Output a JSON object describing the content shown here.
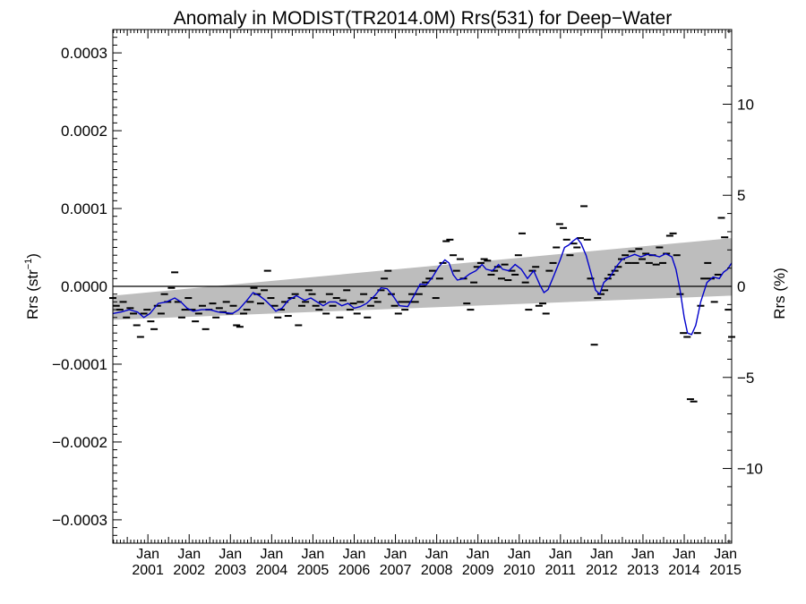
{
  "chart_data": {
    "type": "scatter",
    "title": "Anomaly in MODIST(TR2014.0M) Rrs(531) for Deep−Water",
    "ylabel_left_main": "Rrs (str",
    "ylabel_left_sup": "−1",
    "ylabel_left_close": ")",
    "ylabel_right": "Rrs (%)",
    "xlim": [
      2000.15,
      2015.15
    ],
    "ylim": [
      -0.00033,
      0.00033
    ],
    "ylim_right_percent": [
      -14.1,
      14.1
    ],
    "left_ticks": [
      {
        "value": 0.0003,
        "label": "0.0003"
      },
      {
        "value": 0.0002,
        "label": "0.0002"
      },
      {
        "value": 0.0001,
        "label": "0.0001"
      },
      {
        "value": 0.0,
        "label": "0.0000"
      },
      {
        "value": -0.0001,
        "label": "−0.0001"
      },
      {
        "value": -0.0002,
        "label": "−0.0002"
      },
      {
        "value": -0.0003,
        "label": "−0.0003"
      }
    ],
    "right_ticks": [
      {
        "value": 10,
        "label": "10"
      },
      {
        "value": 5,
        "label": "5"
      },
      {
        "value": 0,
        "label": "0"
      },
      {
        "value": -5,
        "label": "−5"
      },
      {
        "value": -10,
        "label": "−10"
      }
    ],
    "x_ticks": [
      {
        "value": 2001,
        "month": "Jan",
        "year": "2001"
      },
      {
        "value": 2002,
        "month": "Jan",
        "year": "2002"
      },
      {
        "value": 2003,
        "month": "Jan",
        "year": "2003"
      },
      {
        "value": 2004,
        "month": "Jan",
        "year": "2004"
      },
      {
        "value": 2005,
        "month": "Jan",
        "year": "2005"
      },
      {
        "value": 2006,
        "month": "Jan",
        "year": "2006"
      },
      {
        "value": 2007,
        "month": "Jan",
        "year": "2007"
      },
      {
        "value": 2008,
        "month": "Jan",
        "year": "2008"
      },
      {
        "value": 2009,
        "month": "Jan",
        "year": "2009"
      },
      {
        "value": 2010,
        "month": "Jan",
        "year": "2010"
      },
      {
        "value": 2011,
        "month": "Jan",
        "year": "2011"
      },
      {
        "value": 2012,
        "month": "Jan",
        "year": "2012"
      },
      {
        "value": 2013,
        "month": "Jan",
        "year": "2013"
      },
      {
        "value": 2014,
        "month": "Jan",
        "year": "2014"
      },
      {
        "value": 2015,
        "month": "Jan",
        "year": "2015"
      }
    ],
    "trend_band": {
      "start": {
        "x": 2000.15,
        "low": -4.3e-05,
        "high": -1.2e-05
      },
      "end": {
        "x": 2015.15,
        "low": -1.2e-05,
        "high": 6.2e-05
      }
    },
    "zero_line": 0.0,
    "colors": {
      "points": "#000000",
      "smooth": "#0000cc",
      "band": "#bdbdbd",
      "axes": "#000000"
    },
    "monthly_anomalies": [
      [
        2000.15,
        -1.5e-05
      ],
      [
        2000.23,
        -2.5e-05
      ],
      [
        2000.32,
        -3e-05
      ],
      [
        2000.4,
        -2e-05
      ],
      [
        2000.48,
        -4e-05
      ],
      [
        2000.57,
        -2.8e-05
      ],
      [
        2000.65,
        -3.5e-05
      ],
      [
        2000.73,
        -5e-05
      ],
      [
        2000.82,
        -6.5e-05
      ],
      [
        2000.9,
        -3.5e-05
      ],
      [
        2000.98,
        -3e-05
      ],
      [
        2001.07,
        -4.5e-05
      ],
      [
        2001.15,
        -5.5e-05
      ],
      [
        2001.23,
        -2.5e-05
      ],
      [
        2001.32,
        -3.5e-05
      ],
      [
        2001.4,
        -1e-05
      ],
      [
        2001.48,
        -2e-05
      ],
      [
        2001.57,
        -2e-06
      ],
      [
        2001.65,
        1.8e-05
      ],
      [
        2001.73,
        -2e-05
      ],
      [
        2001.82,
        -4e-05
      ],
      [
        2001.9,
        -3e-05
      ],
      [
        2001.98,
        -1.5e-05
      ],
      [
        2002.07,
        -3e-05
      ],
      [
        2002.15,
        -4.5e-05
      ],
      [
        2002.23,
        -3.5e-05
      ],
      [
        2002.32,
        -2.5e-05
      ],
      [
        2002.4,
        -5.5e-05
      ],
      [
        2002.48,
        -3e-05
      ],
      [
        2002.57,
        -2.2e-05
      ],
      [
        2002.65,
        -4e-05
      ],
      [
        2002.73,
        -2.8e-05
      ],
      [
        2002.82,
        -3.3e-05
      ],
      [
        2002.9,
        -2e-05
      ],
      [
        2002.98,
        -3.5e-05
      ],
      [
        2003.07,
        -2.5e-05
      ],
      [
        2003.15,
        -5e-05
      ],
      [
        2003.23,
        -5.2e-05
      ],
      [
        2003.32,
        -3.5e-05
      ],
      [
        2003.4,
        -3e-05
      ],
      [
        2003.48,
        -2e-05
      ],
      [
        2003.57,
        -2e-06
      ],
      [
        2003.65,
        -1e-05
      ],
      [
        2003.73,
        -2.2e-05
      ],
      [
        2003.82,
        -5e-06
      ],
      [
        2003.9,
        2e-05
      ],
      [
        2003.98,
        -1.5e-05
      ],
      [
        2004.07,
        -2.5e-05
      ],
      [
        2004.15,
        -4e-05
      ],
      [
        2004.23,
        -3e-05
      ],
      [
        2004.32,
        -2e-05
      ],
      [
        2004.4,
        -3.8e-05
      ],
      [
        2004.48,
        -1.5e-05
      ],
      [
        2004.57,
        -1e-05
      ],
      [
        2004.65,
        -5e-05
      ],
      [
        2004.73,
        -2.5e-05
      ],
      [
        2004.82,
        -2e-05
      ],
      [
        2004.9,
        -5e-06
      ],
      [
        2004.98,
        -1e-05
      ],
      [
        2005.07,
        -2.5e-05
      ],
      [
        2005.15,
        -3e-05
      ],
      [
        2005.23,
        -2e-05
      ],
      [
        2005.32,
        -3.5e-05
      ],
      [
        2005.4,
        -1e-05
      ],
      [
        2005.48,
        -2.5e-05
      ],
      [
        2005.57,
        -1.5e-05
      ],
      [
        2005.65,
        -4e-05
      ],
      [
        2005.73,
        -1.8e-05
      ],
      [
        2005.82,
        -5e-06
      ],
      [
        2005.9,
        -3e-05
      ],
      [
        2005.98,
        -2.2e-05
      ],
      [
        2006.07,
        -3.5e-05
      ],
      [
        2006.15,
        -2e-05
      ],
      [
        2006.23,
        -1e-05
      ],
      [
        2006.32,
        -4e-05
      ],
      [
        2006.4,
        -2.5e-05
      ],
      [
        2006.48,
        -1.5e-05
      ],
      [
        2006.57,
        -2e-05
      ],
      [
        2006.65,
        -5e-06
      ],
      [
        2006.73,
        1e-05
      ],
      [
        2006.82,
        2e-05
      ],
      [
        2006.9,
        -1e-05
      ],
      [
        2006.98,
        -2.5e-05
      ],
      [
        2007.07,
        -3.5e-05
      ],
      [
        2007.15,
        -2e-05
      ],
      [
        2007.23,
        -3e-05
      ],
      [
        2007.32,
        -2e-05
      ],
      [
        2007.4,
        -1e-05
      ],
      [
        2007.48,
        -2e-05
      ],
      [
        2007.57,
        -1e-05
      ],
      [
        2007.65,
        0.0
      ],
      [
        2007.73,
        5e-06
      ],
      [
        2007.82,
        1e-05
      ],
      [
        2007.9,
        2e-05
      ],
      [
        2007.98,
        -1.5e-05
      ],
      [
        2008.07,
        1e-05
      ],
      [
        2008.15,
        3e-05
      ],
      [
        2008.23,
        5.8e-05
      ],
      [
        2008.32,
        6e-05
      ],
      [
        2008.4,
        4e-05
      ],
      [
        2008.48,
        2e-05
      ],
      [
        2008.57,
        3.5e-05
      ],
      [
        2008.65,
        1e-05
      ],
      [
        2008.73,
        -2.2e-05
      ],
      [
        2008.82,
        -3e-05
      ],
      [
        2008.9,
        5e-06
      ],
      [
        2008.98,
        2.5e-05
      ],
      [
        2009.07,
        3e-05
      ],
      [
        2009.15,
        3.5e-05
      ],
      [
        2009.23,
        3.3e-05
      ],
      [
        2009.32,
        1.5e-05
      ],
      [
        2009.4,
        2e-05
      ],
      [
        2009.48,
        2.5e-05
      ],
      [
        2009.57,
        1e-05
      ],
      [
        2009.65,
        2.8e-05
      ],
      [
        2009.73,
        8e-06
      ],
      [
        2009.82,
        2e-05
      ],
      [
        2009.9,
        1.5e-05
      ],
      [
        2009.98,
        4e-05
      ],
      [
        2010.07,
        6.8e-05
      ],
      [
        2010.15,
        5e-06
      ],
      [
        2010.23,
        -3e-05
      ],
      [
        2010.32,
        2e-05
      ],
      [
        2010.4,
        2.5e-05
      ],
      [
        2010.48,
        -2.5e-05
      ],
      [
        2010.57,
        -2.2e-05
      ],
      [
        2010.65,
        -3.5e-05
      ],
      [
        2010.73,
        2e-05
      ],
      [
        2010.82,
        3e-05
      ],
      [
        2010.9,
        5e-05
      ],
      [
        2010.98,
        8e-05
      ],
      [
        2011.07,
        7.5e-05
      ],
      [
        2011.15,
        6e-05
      ],
      [
        2011.23,
        4e-05
      ],
      [
        2011.32,
        5.5e-05
      ],
      [
        2011.4,
        5e-05
      ],
      [
        2011.48,
        6.2e-05
      ],
      [
        2011.57,
        0.000103
      ],
      [
        2011.65,
        6e-05
      ],
      [
        2011.73,
        1e-05
      ],
      [
        2011.82,
        -7.5e-05
      ],
      [
        2011.9,
        -1.5e-05
      ],
      [
        2011.98,
        -1e-05
      ],
      [
        2012.07,
        -5e-06
      ],
      [
        2012.15,
        1e-05
      ],
      [
        2012.23,
        1.5e-05
      ],
      [
        2012.32,
        2e-05
      ],
      [
        2012.4,
        2.5e-05
      ],
      [
        2012.48,
        3.5e-05
      ],
      [
        2012.57,
        4e-05
      ],
      [
        2012.65,
        3e-05
      ],
      [
        2012.73,
        4.5e-05
      ],
      [
        2012.82,
        3e-05
      ],
      [
        2012.9,
        4.8e-05
      ],
      [
        2012.98,
        3.5e-05
      ],
      [
        2013.07,
        4.2e-05
      ],
      [
        2013.15,
        3e-05
      ],
      [
        2013.23,
        4e-05
      ],
      [
        2013.32,
        2.8e-05
      ],
      [
        2013.4,
        5e-05
      ],
      [
        2013.48,
        3e-05
      ],
      [
        2013.57,
        4.2e-05
      ],
      [
        2013.65,
        6.5e-05
      ],
      [
        2013.73,
        6.8e-05
      ],
      [
        2013.82,
        4e-05
      ],
      [
        2013.9,
        -1e-05
      ],
      [
        2013.98,
        -6e-05
      ],
      [
        2014.07,
        -6.5e-05
      ],
      [
        2014.15,
        -0.000145
      ],
      [
        2014.23,
        -0.000148
      ],
      [
        2014.32,
        -6e-05
      ],
      [
        2014.4,
        -2.5e-05
      ],
      [
        2014.48,
        1e-05
      ],
      [
        2014.57,
        3e-05
      ],
      [
        2014.65,
        1e-05
      ],
      [
        2014.73,
        -2e-05
      ],
      [
        2014.82,
        1.5e-05
      ],
      [
        2014.9,
        8.8e-05
      ],
      [
        2014.98,
        6.3e-05
      ],
      [
        2015.07,
        -3e-05
      ],
      [
        2015.15,
        -6.5e-05
      ]
    ],
    "smoothed_series": [
      [
        2000.15,
        -3.5e-05
      ],
      [
        2000.35,
        -3.3e-05
      ],
      [
        2000.55,
        -3e-05
      ],
      [
        2000.75,
        -3.3e-05
      ],
      [
        2000.9,
        -4e-05
      ],
      [
        2001.05,
        -3.5e-05
      ],
      [
        2001.25,
        -2.2e-05
      ],
      [
        2001.45,
        -2e-05
      ],
      [
        2001.65,
        -1.5e-05
      ],
      [
        2001.8,
        -2e-05
      ],
      [
        2001.95,
        -2.8e-05
      ],
      [
        2002.1,
        -3.2e-05
      ],
      [
        2002.3,
        -3e-05
      ],
      [
        2002.5,
        -3e-05
      ],
      [
        2002.7,
        -3.3e-05
      ],
      [
        2002.9,
        -3.4e-05
      ],
      [
        2003.05,
        -3.5e-05
      ],
      [
        2003.2,
        -3e-05
      ],
      [
        2003.4,
        -1.8e-05
      ],
      [
        2003.55,
        -8e-06
      ],
      [
        2003.7,
        -1.2e-05
      ],
      [
        2003.85,
        -1.8e-05
      ],
      [
        2004.0,
        -2.6e-05
      ],
      [
        2004.1,
        -3.2e-05
      ],
      [
        2004.25,
        -2.8e-05
      ],
      [
        2004.4,
        -1.8e-05
      ],
      [
        2004.6,
        -1.2e-05
      ],
      [
        2004.8,
        -1.8e-05
      ],
      [
        2004.95,
        -1.5e-05
      ],
      [
        2005.1,
        -2e-05
      ],
      [
        2005.25,
        -2.5e-05
      ],
      [
        2005.4,
        -2e-05
      ],
      [
        2005.55,
        -2e-05
      ],
      [
        2005.7,
        -2.5e-05
      ],
      [
        2005.85,
        -2.2e-05
      ],
      [
        2006.0,
        -2.8e-05
      ],
      [
        2006.15,
        -2.6e-05
      ],
      [
        2006.3,
        -2.2e-05
      ],
      [
        2006.5,
        -1.2e-05
      ],
      [
        2006.65,
        -2e-06
      ],
      [
        2006.8,
        -3e-06
      ],
      [
        2006.95,
        -1.3e-05
      ],
      [
        2007.1,
        -2.5e-05
      ],
      [
        2007.3,
        -2.6e-05
      ],
      [
        2007.45,
        -1.2e-05
      ],
      [
        2007.6,
        3e-06
      ],
      [
        2007.75,
        2e-06
      ],
      [
        2007.9,
        1.2e-05
      ],
      [
        2008.05,
        2.5e-05
      ],
      [
        2008.2,
        3.4e-05
      ],
      [
        2008.3,
        3e-05
      ],
      [
        2008.4,
        1.5e-05
      ],
      [
        2008.5,
        8e-06
      ],
      [
        2008.65,
        1e-05
      ],
      [
        2008.8,
        1.6e-05
      ],
      [
        2008.95,
        2e-05
      ],
      [
        2009.1,
        2.8e-05
      ],
      [
        2009.2,
        2.2e-05
      ],
      [
        2009.35,
        2e-05
      ],
      [
        2009.5,
        2.8e-05
      ],
      [
        2009.6,
        2.2e-05
      ],
      [
        2009.75,
        2e-05
      ],
      [
        2009.9,
        2.8e-05
      ],
      [
        2010.05,
        2.2e-05
      ],
      [
        2010.2,
        1e-05
      ],
      [
        2010.35,
        2e-05
      ],
      [
        2010.5,
        2e-06
      ],
      [
        2010.6,
        -8e-06
      ],
      [
        2010.7,
        -4e-06
      ],
      [
        2010.85,
        1.5e-05
      ],
      [
        2011.0,
        3.5e-05
      ],
      [
        2011.1,
        5e-05
      ],
      [
        2011.2,
        5.3e-05
      ],
      [
        2011.3,
        5.8e-05
      ],
      [
        2011.4,
        6.2e-05
      ],
      [
        2011.5,
        5.5e-05
      ],
      [
        2011.62,
        4e-05
      ],
      [
        2011.75,
        1.5e-05
      ],
      [
        2011.85,
        -5e-06
      ],
      [
        2011.95,
        -1e-05
      ],
      [
        2012.05,
        5e-06
      ],
      [
        2012.2,
        1.2e-05
      ],
      [
        2012.35,
        2.5e-05
      ],
      [
        2012.5,
        3.5e-05
      ],
      [
        2012.65,
        3.8e-05
      ],
      [
        2012.8,
        4.1e-05
      ],
      [
        2012.95,
        3.8e-05
      ],
      [
        2013.1,
        4.1e-05
      ],
      [
        2013.25,
        4e-05
      ],
      [
        2013.4,
        3.8e-05
      ],
      [
        2013.55,
        4.2e-05
      ],
      [
        2013.7,
        3.8e-05
      ],
      [
        2013.8,
        2.2e-05
      ],
      [
        2013.9,
        -5e-06
      ],
      [
        2014.0,
        -4e-05
      ],
      [
        2014.08,
        -6e-05
      ],
      [
        2014.18,
        -6.2e-05
      ],
      [
        2014.28,
        -5e-05
      ],
      [
        2014.4,
        -2e-05
      ],
      [
        2014.55,
        5e-06
      ],
      [
        2014.7,
        1.2e-05
      ],
      [
        2014.85,
        1e-05
      ],
      [
        2014.95,
        1.8e-05
      ],
      [
        2015.05,
        2.2e-05
      ],
      [
        2015.15,
        3e-05
      ]
    ]
  }
}
